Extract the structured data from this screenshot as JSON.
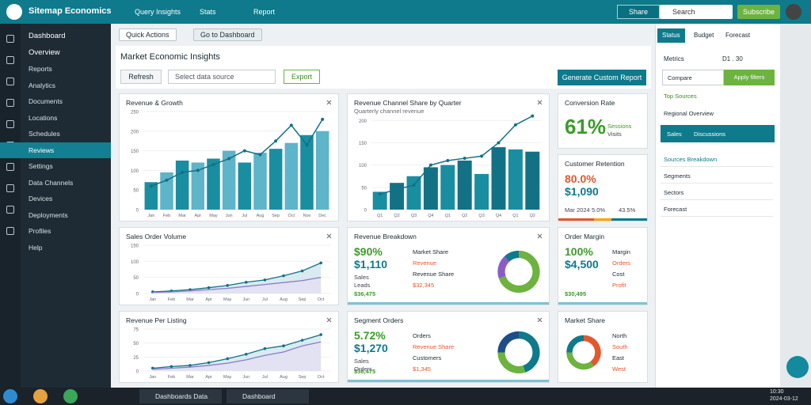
{
  "header": {
    "brand": "Sitemap Economics",
    "nav": [
      "Query Insights",
      "Stats",
      "Report"
    ],
    "share": "Share",
    "search": "Search",
    "subscribe": "Subscribe"
  },
  "sidebar": {
    "items": [
      "Dashboard",
      "Overview",
      "Reports",
      "Analytics",
      "Documents",
      "Locations",
      "Schedules",
      "Reviews",
      "Settings",
      "Data Channels",
      "Devices",
      "Deployments",
      "Profiles",
      "Help"
    ],
    "active": 7
  },
  "tabs": [
    "Quick Actions",
    "Go to Dashboard"
  ],
  "panel": {
    "title": "Market Economic Insights",
    "refresh": "Refresh",
    "select": "Select data source",
    "export": "Export",
    "generate": "Generate Custom Report"
  },
  "cards": [
    {
      "title": "Revenue & Growth",
      "chart": {
        "type": "bar-line",
        "categories": [
          "Jan",
          "Feb",
          "Mar",
          "Apr",
          "May",
          "Jun",
          "Jul",
          "Aug",
          "Sep",
          "Oct",
          "Nov",
          "Dec"
        ],
        "bars": {
          "colors": [
            "#1a8ea1",
            "#5eb4c9"
          ],
          "values": [
            70,
            95,
            125,
            120,
            130,
            150,
            120,
            145,
            155,
            170,
            190,
            200
          ]
        },
        "line": {
          "color": "#137185",
          "values": [
            60,
            75,
            95,
            100,
            115,
            130,
            150,
            140,
            175,
            215,
            165,
            230
          ]
        },
        "ylim": [
          0,
          250
        ],
        "yticks": [
          0,
          50,
          100,
          150,
          200,
          250
        ]
      }
    },
    {
      "title": "Revenue Channel Share by Quarter",
      "subtitle": "Quarterly channel revenue",
      "chart": {
        "type": "bar-line",
        "categories": [
          "Q1",
          "Q2",
          "Q3",
          "Q4",
          "Q1",
          "Q2",
          "Q3",
          "Q4",
          "Q1",
          "Q2"
        ],
        "bars": {
          "colors": [
            "#1a8ea1",
            "#137185"
          ],
          "values": [
            40,
            60,
            75,
            95,
            100,
            110,
            80,
            140,
            135,
            130
          ]
        },
        "line": {
          "color": "#137185",
          "values": [
            35,
            45,
            55,
            100,
            110,
            115,
            120,
            150,
            190,
            210
          ]
        },
        "ylim": [
          0,
          220
        ],
        "yticks": [
          0,
          50,
          100,
          150,
          200
        ]
      }
    },
    {
      "title": "Conversion Rate",
      "big": "61%",
      "side": [
        "Sessions",
        "Visits"
      ]
    },
    {
      "title": "Customer Retention",
      "big": "80.0%",
      "big2": "$1,090",
      "foot": [
        "Mar 2024",
        "5.0%",
        "43.5%"
      ]
    },
    {
      "title": "Sales Order Volume",
      "chart": {
        "type": "area",
        "categories": [
          "Jan",
          "Feb",
          "Mar",
          "Apr",
          "May",
          "Jun",
          "Jul",
          "Aug",
          "Sep",
          "Oct"
        ],
        "series": [
          {
            "color": "#137185",
            "fill": "#cfe6ec",
            "values": [
              5,
              8,
              12,
              18,
              25,
              35,
              42,
              55,
              70,
              95
            ]
          },
          {
            "color": "#8a7bc8",
            "fill": "#e4e0f3",
            "values": [
              3,
              5,
              8,
              12,
              16,
              22,
              28,
              34,
              40,
              50
            ]
          }
        ],
        "ylim": [
          0,
          150
        ],
        "yticks": [
          0,
          50,
          100,
          150
        ]
      }
    },
    {
      "title": "Revenue Breakdown",
      "big": "$90%",
      "big2": "$1,110",
      "rows": [
        "Sales",
        "Leads"
      ],
      "foot": "$36,475",
      "mid": [
        "Market Share",
        "Revenue",
        "Revenue Share",
        "$32,345"
      ],
      "donut": {
        "values": [
          70,
          18,
          12
        ],
        "colors": [
          "#6cb33f",
          "#8a5cc8",
          "#0e7a8c"
        ]
      }
    },
    {
      "title": "Order Margin",
      "big": "100%",
      "big2": "$4,500",
      "foot": "$30,495",
      "mid": [
        "Margin",
        "Orders",
        "Cost",
        "Profit"
      ]
    },
    {
      "title": "Revenue Per Listing",
      "chart": {
        "type": "area",
        "categories": [
          "Jan",
          "Feb",
          "Mar",
          "Apr",
          "May",
          "Jun",
          "Jul",
          "Aug",
          "Sep",
          "Oct"
        ],
        "series": [
          {
            "color": "#137185",
            "fill": "#cfe6ec",
            "values": [
              5,
              8,
              10,
              15,
              22,
              30,
              40,
              45,
              55,
              65
            ]
          },
          {
            "color": "#8a7bc8",
            "fill": "#e4e0f3",
            "values": [
              3,
              5,
              7,
              10,
              14,
              20,
              28,
              34,
              45,
              52
            ]
          }
        ],
        "ylim": [
          0,
          75
        ],
        "yticks": [
          0,
          25,
          50,
          75
        ]
      }
    },
    {
      "title": "Segment Orders",
      "big": "5.72%",
      "big2": "$1,270",
      "rows": [
        "Sales",
        "Orders"
      ],
      "foot": "$36,475",
      "mid": [
        "Orders",
        "Revenue Share",
        "Customers",
        "$1,345"
      ],
      "donut": {
        "values": [
          45,
          30,
          25
        ],
        "colors": [
          "#0e7a8c",
          "#6cb33f",
          "#1d4e89"
        ]
      }
    },
    {
      "title": "Market Share",
      "mid": [
        "North",
        "South",
        "East",
        "West"
      ],
      "donut": {
        "values": [
          40,
          35,
          25
        ],
        "colors": [
          "#e4572e",
          "#6cb33f",
          "#0e7a8c"
        ]
      }
    }
  ],
  "right": {
    "tabs": [
      "Status",
      "Budget",
      "Forecast"
    ],
    "metrics": "Metrics",
    "period": "D1 . 30",
    "compare": "Compare",
    "apply": "Apply filters",
    "top": "Top Sources",
    "regional": "Regional Overview",
    "sel": [
      "Sales",
      "Discussions"
    ],
    "list": [
      "Sources Breakdown",
      "Segments",
      "Sectors",
      "Forecast"
    ]
  },
  "taskbar": [
    "Dashboards Data",
    "Dashboard"
  ],
  "clock": [
    "10:30",
    "2024-03-12"
  ]
}
